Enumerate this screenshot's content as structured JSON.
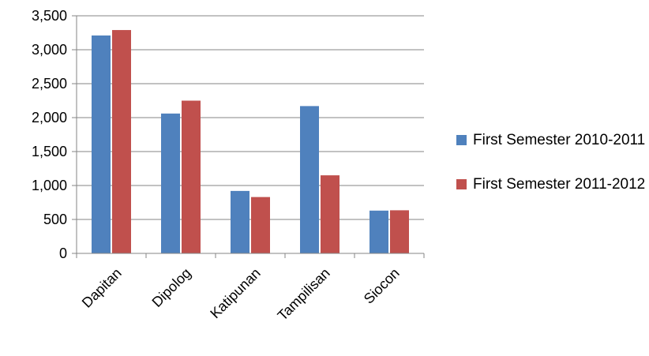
{
  "chart_data": {
    "type": "bar",
    "title": "",
    "xlabel": "",
    "ylabel": "",
    "categories": [
      "Dapitan",
      "Dipolog",
      "Katipunan",
      "Tampilisan",
      "Siocon"
    ],
    "series": [
      {
        "name": "First Semester 2010-2011",
        "color": "#4F81BD",
        "values": [
          3210,
          2060,
          920,
          2170,
          630
        ]
      },
      {
        "name": "First Semester 2011-2012",
        "color": "#C0504D",
        "values": [
          3290,
          2250,
          830,
          1150,
          635
        ]
      }
    ],
    "ylim": [
      0,
      3500
    ],
    "yticks": [
      0,
      500,
      1000,
      1500,
      2000,
      2500,
      3000,
      3500
    ],
    "ytick_labels": [
      "0",
      "500",
      "1,000",
      "1,500",
      "2,000",
      "2,500",
      "3,000",
      "3,500"
    ],
    "grid": true,
    "legend_position": "right"
  }
}
